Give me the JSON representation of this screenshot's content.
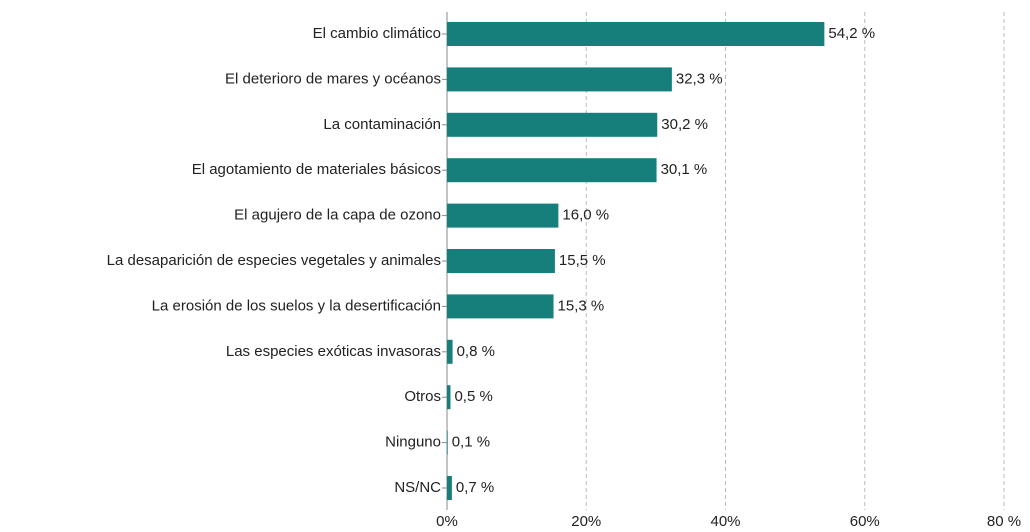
{
  "chart_data": {
    "type": "barh",
    "categories": [
      "El cambio climático",
      "El deterioro de mares y océanos",
      "La contaminación",
      "El agotamiento de materiales básicos",
      "El agujero de la capa de ozono",
      "La desaparición de especies vegetales y animales",
      "La erosión de los suelos y la desertificación",
      "Las especies exóticas invasoras",
      "Otros",
      "Ninguno",
      "NS/NC"
    ],
    "values": [
      54.2,
      32.3,
      30.2,
      30.1,
      16.0,
      15.5,
      15.3,
      0.8,
      0.5,
      0.1,
      0.7
    ],
    "value_labels": [
      "54,2 %",
      "32,3 %",
      "30,2 %",
      "30,1 %",
      "16,0 %",
      "15,5 %",
      "15,3 %",
      "0,8 %",
      "0,5 %",
      "0,1 %",
      "0,7 %"
    ],
    "color": "#167f7c",
    "xlim": [
      0,
      80
    ],
    "xticks": [
      {
        "value": 0,
        "label": "0%"
      },
      {
        "value": 20,
        "label": "20%"
      },
      {
        "value": 40,
        "label": "40%"
      },
      {
        "value": 60,
        "label": "60%"
      },
      {
        "value": 80,
        "label": "80 %"
      }
    ],
    "grid": true
  }
}
